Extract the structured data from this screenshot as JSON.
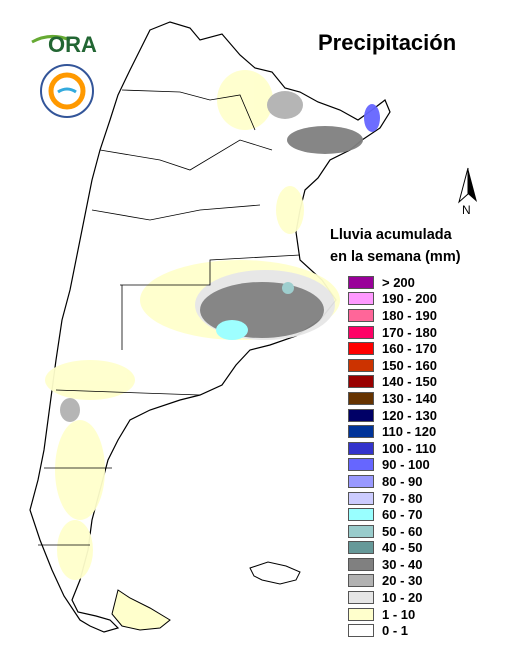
{
  "title": "Precipitación",
  "logo_ora_text": "ORA",
  "north_label": "N",
  "legend_title_line1": "Lluvia acumulada",
  "legend_title_line2": "en la semana (mm)",
  "legend": [
    {
      "label": "> 200",
      "color": "#990099"
    },
    {
      "label": "190 - 200",
      "color": "#ff99ff"
    },
    {
      "label": "180 - 190",
      "color": "#ff6699"
    },
    {
      "label": "170 - 180",
      "color": "#ff0066"
    },
    {
      "label": "160 - 170",
      "color": "#ff0000"
    },
    {
      "label": "150 - 160",
      "color": "#cc3300"
    },
    {
      "label": "140 - 150",
      "color": "#990000"
    },
    {
      "label": "130 - 140",
      "color": "#663300"
    },
    {
      "label": "120 - 130",
      "color": "#000066"
    },
    {
      "label": "110 - 120",
      "color": "#003399"
    },
    {
      "label": "100 - 110",
      "color": "#3333cc"
    },
    {
      "label": "90 - 100",
      "color": "#6666ff"
    },
    {
      "label": "80 - 90",
      "color": "#9999ff"
    },
    {
      "label": "70 - 80",
      "color": "#ccccff"
    },
    {
      "label": "60 - 70",
      "color": "#99ffff"
    },
    {
      "label": "50 - 60",
      "color": "#99cccc"
    },
    {
      "label": "40 - 50",
      "color": "#669999"
    },
    {
      "label": "30 - 40",
      "color": "#808080"
    },
    {
      "label": "20 - 30",
      "color": "#b2b2b2"
    },
    {
      "label": "10 - 20",
      "color": "#e6e6e6"
    },
    {
      "label": "1 - 10",
      "color": "#ffffcc"
    },
    {
      "label": "0 - 1",
      "color": "#ffffff"
    }
  ]
}
